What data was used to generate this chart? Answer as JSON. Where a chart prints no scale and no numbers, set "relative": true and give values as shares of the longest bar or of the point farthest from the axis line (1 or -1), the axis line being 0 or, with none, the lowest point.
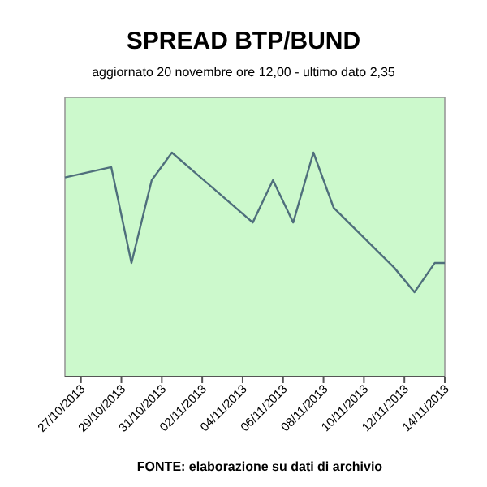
{
  "chart_data": {
    "type": "line",
    "title": "SPREAD BTP/BUND",
    "subtitle": "aggiornato 20 novembre ore 12,00 - ultimo dato 2,35",
    "annotations": [
      "FONTE: elaborazione su dati di archivio"
    ],
    "relative": true,
    "x": [
      "2013-10-26T05:00",
      "2013-10-28T12:00",
      "2013-10-29T12:00",
      "2013-10-30T12:00",
      "2013-10-31T12:00",
      "2013-11-04T12:00",
      "2013-11-05T12:00",
      "2013-11-06T12:00",
      "2013-11-07T12:00",
      "2013-11-08T12:00",
      "2013-11-11T12:00",
      "2013-11-12T12:00",
      "2013-11-13T12:00",
      "2013-11-14T00:00"
    ],
    "series": [
      {
        "color": "#4f6f7c",
        "values": [
          0.889,
          0.935,
          0.507,
          0.877,
          1,
          0.688,
          0.877,
          0.688,
          1,
          0.754,
          0.486,
          0.377,
          0.507,
          0.507
        ]
      }
    ],
    "xlim": [
      "2013-10-26T05:00",
      "2013-11-14T00:00"
    ],
    "xticks": [
      {
        "value": "2013-10-27",
        "label": "27/10/2013"
      },
      {
        "value": "2013-10-29",
        "label": "29/10/2013"
      },
      {
        "value": "2013-10-31",
        "label": "31/10/2013"
      },
      {
        "value": "2013-11-02",
        "label": "02/11/2013"
      },
      {
        "value": "2013-11-04",
        "label": "04/11/2013"
      },
      {
        "value": "2013-11-06",
        "label": "06/11/2013"
      },
      {
        "value": "2013-11-08",
        "label": "08/11/2013"
      },
      {
        "value": "2013-11-10",
        "label": "10/11/2013"
      },
      {
        "value": "2013-11-12",
        "label": "12/11/2013"
      },
      {
        "value": "2013-11-14",
        "label": "14/11/2013"
      }
    ],
    "marker": "none",
    "line_style": "solid"
  }
}
